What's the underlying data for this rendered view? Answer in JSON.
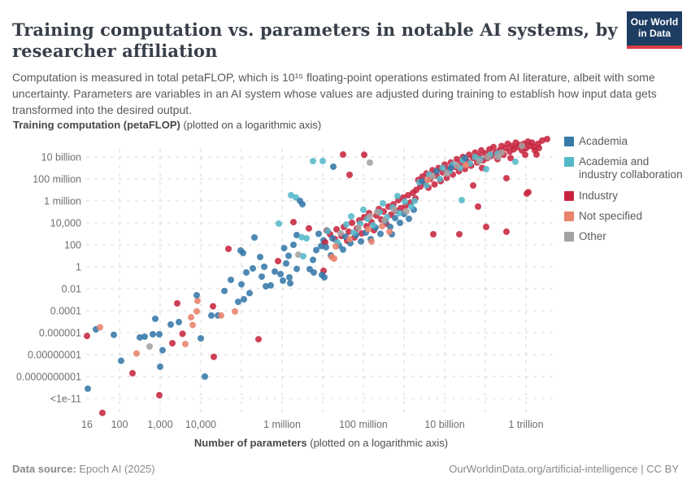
{
  "header": {
    "title": "Training computation vs. parameters in notable AI systems, by researcher affiliation",
    "subtitle": "Computation is measured in total petaFLOP, which is 10¹⁵ floating-point operations estimated from AI literature, albeit with some uncertainty. Parameters are variables in an AI system whose values are adjusted during training to establish how input data gets transformed into the desired output.",
    "logo": {
      "line1": "Our World",
      "line2": "in Data",
      "bg_color": "#1d3d63",
      "accent_color": "#dc3c43"
    }
  },
  "footer": {
    "datasource_label": "Data source:",
    "datasource_value": " Epoch AI (2025)",
    "right_text": "OurWorldinData.org/artificial-intelligence | CC BY"
  },
  "chart_data": {
    "type": "scatter",
    "title": "Training computation vs. parameters in notable AI systems, by researcher affiliation",
    "x_axis": {
      "label_bold": "Number of parameters",
      "label_rest": " (plotted on a logarithmic axis)",
      "scale": "log",
      "range_log10": [
        1.1,
        12.7
      ],
      "ticks": [
        {
          "log": 1.2,
          "label": "16"
        },
        {
          "log": 2,
          "label": "100"
        },
        {
          "log": 3,
          "label": "1,000"
        },
        {
          "log": 4,
          "label": "10,000"
        },
        {
          "log": 6,
          "label": "1 million"
        },
        {
          "log": 8,
          "label": "100 million"
        },
        {
          "log": 10,
          "label": "10 billion"
        },
        {
          "log": 12,
          "label": "1 trillion"
        }
      ],
      "gridline_logs": [
        2,
        3,
        4,
        5,
        6,
        7,
        8,
        9,
        10,
        11,
        12
      ]
    },
    "y_axis": {
      "label_bold": "Training computation (petaFLOP)",
      "label_rest": " (plotted on a logarithmic axis)",
      "scale": "log",
      "range_log10": [
        -13.5,
        11.8
      ],
      "ticks": [
        {
          "log": 10,
          "label": "10 billion"
        },
        {
          "log": 8,
          "label": "100 million"
        },
        {
          "log": 6,
          "label": "1 million"
        },
        {
          "log": 4,
          "label": "10,000"
        },
        {
          "log": 2,
          "label": "100"
        },
        {
          "log": 0,
          "label": "1"
        },
        {
          "log": -2,
          "label": "0.01"
        },
        {
          "log": -4,
          "label": "0.0001"
        },
        {
          "log": -6,
          "label": "0.000001"
        },
        {
          "log": -8,
          "label": "0.00000001"
        },
        {
          "log": -10,
          "label": "0.0000000001"
        },
        {
          "log": -12,
          "label": "<1e-11"
        }
      ]
    },
    "legend_position": "right",
    "grid": "dashed",
    "categories": [
      {
        "name": "Academia",
        "color": "#3579A9"
      },
      {
        "name": "Academia and industry collaboration",
        "color": "#55B8C9"
      },
      {
        "name": "Industry",
        "color": "#C7253F"
      },
      {
        "name": "Not specified",
        "color": "#E8836C"
      },
      {
        "name": "Other",
        "color": "#A5A2A2"
      }
    ],
    "points_format": "[log10(parameters), log10(petaFLOP), category_index]",
    "points_log10": [
      [
        1.2,
        -6.3,
        2
      ],
      [
        1.42,
        -5.7,
        0
      ],
      [
        1.52,
        -5.52,
        3
      ],
      [
        1.22,
        -11.1,
        0
      ],
      [
        1.58,
        -13.3,
        2
      ],
      [
        2.04,
        -8.56,
        0
      ],
      [
        2.32,
        -9.7,
        2
      ],
      [
        2.5,
        -6.44,
        0
      ],
      [
        2.62,
        -6.37,
        0
      ],
      [
        2.82,
        -6.15,
        0
      ],
      [
        2.98,
        -6.15,
        0
      ],
      [
        2.74,
        -7.26,
        4
      ],
      [
        2.88,
        -4.74,
        0
      ],
      [
        3.0,
        -9.1,
        0
      ],
      [
        2.98,
        -11.7,
        2
      ],
      [
        3.26,
        -5.26,
        0
      ],
      [
        3.42,
        -3.33,
        2
      ],
      [
        3.46,
        -5.04,
        0
      ],
      [
        3.3,
        -6.96,
        2
      ],
      [
        3.62,
        -7.04,
        3
      ],
      [
        3.76,
        -4.6,
        3
      ],
      [
        3.9,
        -4.07,
        3
      ],
      [
        4.0,
        -6.52,
        0
      ],
      [
        4.32,
        -8.2,
        2
      ],
      [
        4.1,
        -10.0,
        0
      ],
      [
        1.86,
        -6.2,
        0
      ],
      [
        2.42,
        -7.9,
        3
      ],
      [
        3.06,
        -7.6,
        0
      ],
      [
        3.55,
        -6.1,
        2
      ],
      [
        3.8,
        -5.3,
        3
      ],
      [
        4.26,
        -4.44,
        0
      ],
      [
        4.42,
        -4.44,
        0
      ],
      [
        4.5,
        -4.44,
        3
      ],
      [
        4.84,
        -4.07,
        3
      ],
      [
        3.92,
        -3.1,
        3
      ],
      [
        4.92,
        -3.19,
        0
      ],
      [
        5.06,
        -2.96,
        0
      ],
      [
        3.9,
        -2.59,
        0
      ],
      [
        4.74,
        -1.19,
        0
      ],
      [
        5.28,
        -0.15,
        0
      ],
      [
        4.68,
        1.63,
        2
      ],
      [
        5.6,
        -1.78,
        0
      ],
      [
        5.72,
        -1.7,
        0
      ],
      [
        6.18,
        -0.96,
        0
      ],
      [
        5.42,
        -6.6,
        2
      ],
      [
        4.58,
        -2.2,
        0
      ],
      [
        5.0,
        -1.6,
        0
      ],
      [
        5.2,
        -2.4,
        0
      ],
      [
        5.5,
        -0.9,
        0
      ],
      [
        4.3,
        -3.6,
        2
      ],
      [
        5.32,
        2.67,
        0
      ],
      [
        5.12,
        -0.52,
        0
      ],
      [
        4.98,
        1.48,
        0
      ],
      [
        5.04,
        1.26,
        0
      ],
      [
        5.46,
        0.89,
        0
      ],
      [
        5.56,
        0.0,
        0
      ],
      [
        5.82,
        -0.44,
        0
      ],
      [
        5.96,
        -0.67,
        0
      ],
      [
        6.02,
        -1.26,
        0
      ],
      [
        5.9,
        0.52,
        2
      ],
      [
        6.1,
        0.3,
        0
      ],
      [
        6.16,
        1.0,
        0
      ],
      [
        6.22,
        6.52,
        1
      ],
      [
        6.34,
        6.3,
        1
      ],
      [
        6.44,
        6.0,
        0
      ],
      [
        6.5,
        5.7,
        0
      ],
      [
        5.92,
        3.93,
        1
      ],
      [
        6.36,
        2.89,
        0
      ],
      [
        6.48,
        2.7,
        1
      ],
      [
        6.6,
        2.59,
        1
      ],
      [
        6.4,
        1.1,
        4
      ],
      [
        6.52,
        0.96,
        1
      ],
      [
        6.76,
        0.63,
        0
      ],
      [
        6.84,
        1.52,
        0
      ],
      [
        6.96,
        1.89,
        0
      ],
      [
        7.02,
        2.41,
        0
      ],
      [
        7.2,
        1.04,
        0
      ],
      [
        7.02,
        -0.37,
        2
      ],
      [
        6.68,
        -0.22,
        0
      ],
      [
        6.78,
        -0.52,
        0
      ],
      [
        6.98,
        -0.74,
        0
      ],
      [
        7.04,
        -0.96,
        0
      ],
      [
        6.36,
        -0.19,
        0
      ],
      [
        7.28,
        0.74,
        3
      ],
      [
        7.22,
        0.89,
        3
      ],
      [
        6.28,
        2.0,
        0
      ],
      [
        6.66,
        3.5,
        2
      ],
      [
        6.9,
        3.0,
        0
      ],
      [
        7.1,
        3.3,
        2
      ],
      [
        6.2,
        -1.5,
        0
      ],
      [
        6.28,
        4.07,
        2
      ],
      [
        6.05,
        1.7,
        0
      ],
      [
        6.76,
        9.63,
        1
      ],
      [
        7.0,
        9.63,
        1
      ],
      [
        7.26,
        9.11,
        0
      ],
      [
        7.5,
        10.22,
        2
      ],
      [
        8.02,
        10.2,
        2
      ],
      [
        8.16,
        9.48,
        4
      ],
      [
        7.66,
        8.37,
        2
      ],
      [
        7.06,
        2.22,
        2
      ],
      [
        7.18,
        2.96,
        2
      ],
      [
        7.3,
        2.52,
        2
      ],
      [
        7.34,
        3.41,
        2
      ],
      [
        7.46,
        2.81,
        2
      ],
      [
        7.52,
        3.63,
        2
      ],
      [
        7.6,
        2.37,
        2
      ],
      [
        7.64,
        3.19,
        2
      ],
      [
        7.72,
        4.0,
        2
      ],
      [
        7.78,
        2.67,
        2
      ],
      [
        7.84,
        3.48,
        2
      ],
      [
        7.9,
        4.22,
        2
      ],
      [
        7.96,
        3.04,
        2
      ],
      [
        8.02,
        4.52,
        2
      ],
      [
        8.08,
        3.7,
        2
      ],
      [
        8.14,
        4.89,
        2
      ],
      [
        8.2,
        4.07,
        2
      ],
      [
        8.26,
        3.33,
        2
      ],
      [
        8.32,
        4.67,
        2
      ],
      [
        8.38,
        5.26,
        2
      ],
      [
        8.44,
        4.3,
        2
      ],
      [
        8.5,
        5.04,
        2
      ],
      [
        8.56,
        3.93,
        2
      ],
      [
        8.62,
        5.48,
        2
      ],
      [
        8.68,
        4.74,
        2
      ],
      [
        8.74,
        5.7,
        2
      ],
      [
        8.8,
        5.11,
        2
      ],
      [
        8.86,
        6.07,
        2
      ],
      [
        8.92,
        5.33,
        2
      ],
      [
        8.98,
        6.3,
        2
      ],
      [
        9.04,
        5.56,
        2
      ],
      [
        9.1,
        6.52,
        2
      ],
      [
        9.16,
        5.85,
        2
      ],
      [
        9.22,
        6.74,
        2
      ],
      [
        9.28,
        6.22,
        2
      ],
      [
        7.08,
        1.78,
        0
      ],
      [
        7.24,
        2.59,
        0
      ],
      [
        7.4,
        1.93,
        0
      ],
      [
        7.56,
        2.74,
        0
      ],
      [
        7.68,
        2.15,
        0
      ],
      [
        7.82,
        2.89,
        0
      ],
      [
        7.94,
        2.3,
        0
      ],
      [
        8.06,
        3.11,
        0
      ],
      [
        8.18,
        2.52,
        0
      ],
      [
        8.3,
        3.56,
        0
      ],
      [
        8.42,
        3.0,
        0
      ],
      [
        8.54,
        4.15,
        0
      ],
      [
        8.66,
        3.63,
        0
      ],
      [
        8.78,
        4.44,
        0
      ],
      [
        8.9,
        4.0,
        0
      ],
      [
        9.0,
        4.81,
        0
      ],
      [
        9.12,
        4.37,
        0
      ],
      [
        9.24,
        5.19,
        0
      ],
      [
        7.5,
        1.56,
        0
      ],
      [
        8.7,
        2.96,
        0
      ],
      [
        7.12,
        3.26,
        1
      ],
      [
        7.36,
        2.22,
        1
      ],
      [
        7.58,
        3.85,
        1
      ],
      [
        7.76,
        3.11,
        1
      ],
      [
        7.92,
        3.93,
        1
      ],
      [
        8.1,
        4.37,
        1
      ],
      [
        8.24,
        3.78,
        1
      ],
      [
        8.4,
        4.96,
        1
      ],
      [
        8.58,
        4.52,
        1
      ],
      [
        8.72,
        5.41,
        1
      ],
      [
        8.88,
        4.89,
        1
      ],
      [
        9.02,
        5.93,
        1
      ],
      [
        9.18,
        5.48,
        1
      ],
      [
        7.7,
        4.59,
        1
      ],
      [
        8.0,
        5.19,
        1
      ],
      [
        8.48,
        5.78,
        1
      ],
      [
        8.84,
        6.44,
        1
      ],
      [
        9.26,
        6.0,
        1
      ],
      [
        7.44,
        3.07,
        4
      ],
      [
        7.88,
        3.56,
        4
      ],
      [
        8.16,
        4.59,
        4
      ],
      [
        8.52,
        4.22,
        4
      ],
      [
        8.76,
        5.19,
        4
      ],
      [
        9.06,
        5.04,
        4
      ],
      [
        8.34,
        5.0,
        4
      ],
      [
        7.32,
        1.85,
        3
      ],
      [
        7.66,
        2.52,
        3
      ],
      [
        8.12,
        3.41,
        3
      ],
      [
        8.46,
        3.7,
        3
      ],
      [
        8.2,
        2.3,
        3
      ],
      [
        8.64,
        3.19,
        3
      ],
      [
        9.3,
        7.0,
        2
      ],
      [
        9.35,
        7.9,
        2
      ],
      [
        9.4,
        7.3,
        2
      ],
      [
        9.45,
        8.2,
        2
      ],
      [
        9.5,
        7.6,
        2
      ],
      [
        9.55,
        8.5,
        2
      ],
      [
        9.6,
        7.2,
        2
      ],
      [
        9.65,
        8.0,
        2
      ],
      [
        9.7,
        8.8,
        2
      ],
      [
        9.75,
        7.5,
        2
      ],
      [
        9.8,
        8.3,
        2
      ],
      [
        9.85,
        9.0,
        2
      ],
      [
        9.9,
        7.8,
        2
      ],
      [
        9.95,
        8.6,
        2
      ],
      [
        10.0,
        9.3,
        2
      ],
      [
        10.05,
        8.1,
        2
      ],
      [
        10.1,
        8.9,
        2
      ],
      [
        10.15,
        9.5,
        2
      ],
      [
        10.2,
        8.4,
        2
      ],
      [
        10.25,
        9.1,
        2
      ],
      [
        10.3,
        9.8,
        2
      ],
      [
        10.35,
        8.7,
        2
      ],
      [
        10.4,
        9.4,
        2
      ],
      [
        10.45,
        10.0,
        2
      ],
      [
        10.5,
        8.9,
        2
      ],
      [
        10.55,
        9.6,
        2
      ],
      [
        10.6,
        10.2,
        2
      ],
      [
        10.65,
        9.2,
        2
      ],
      [
        10.7,
        9.9,
        2
      ],
      [
        10.75,
        10.4,
        2
      ],
      [
        10.8,
        9.5,
        2
      ],
      [
        10.85,
        10.1,
        2
      ],
      [
        10.9,
        10.6,
        2
      ],
      [
        10.95,
        9.7,
        2
      ],
      [
        11.0,
        10.3,
        2
      ],
      [
        11.05,
        9.9,
        2
      ],
      [
        11.1,
        10.7,
        2
      ],
      [
        11.15,
        10.1,
        2
      ],
      [
        11.2,
        10.9,
        2
      ],
      [
        11.25,
        10.4,
        2
      ],
      [
        11.3,
        9.8,
        2
      ],
      [
        11.35,
        10.6,
        2
      ],
      [
        11.4,
        11.0,
        2
      ],
      [
        11.45,
        10.2,
        2
      ],
      [
        11.5,
        10.8,
        2
      ],
      [
        11.55,
        11.2,
        2
      ],
      [
        11.6,
        10.5,
        2
      ],
      [
        11.65,
        11.0,
        2
      ],
      [
        11.7,
        10.7,
        2
      ],
      [
        11.75,
        11.3,
        2
      ],
      [
        11.8,
        10.9,
        2
      ],
      [
        11.85,
        11.1,
        2
      ],
      [
        11.9,
        10.6,
        2
      ],
      [
        11.95,
        11.2,
        2
      ],
      [
        12.0,
        10.8,
        2
      ],
      [
        12.05,
        11.4,
        2
      ],
      [
        12.1,
        11.0,
        2
      ],
      [
        12.15,
        11.3,
        2
      ],
      [
        12.2,
        10.9,
        2
      ],
      [
        12.3,
        11.2,
        2
      ],
      [
        12.4,
        11.5,
        2
      ],
      [
        12.52,
        11.63,
        2
      ],
      [
        12.22,
        10.6,
        2
      ],
      [
        11.98,
        10.2,
        2
      ],
      [
        11.62,
        9.9,
        2
      ],
      [
        10.92,
        9.0,
        2
      ],
      [
        11.52,
        8.07,
        2
      ],
      [
        10.7,
        7.4,
        2
      ],
      [
        12.06,
        6.8,
        2
      ],
      [
        12.26,
        10.22,
        2
      ],
      [
        12.32,
        10.81,
        2
      ],
      [
        12.02,
        6.67,
        2
      ],
      [
        9.38,
        7.7,
        1
      ],
      [
        9.62,
        8.4,
        1
      ],
      [
        9.88,
        8.0,
        1
      ],
      [
        10.12,
        8.7,
        1
      ],
      [
        10.38,
        9.0,
        1
      ],
      [
        10.62,
        9.4,
        1
      ],
      [
        10.88,
        9.8,
        1
      ],
      [
        11.12,
        10.2,
        1
      ],
      [
        9.95,
        9.0,
        1
      ],
      [
        10.45,
        9.7,
        1
      ],
      [
        10.75,
        10.0,
        1
      ],
      [
        11.3,
        10.3,
        1
      ],
      [
        9.55,
        7.4,
        1
      ],
      [
        10.2,
        9.3,
        1
      ],
      [
        10.42,
        6.07,
        1
      ],
      [
        11.02,
        8.89,
        1
      ],
      [
        11.74,
        9.56,
        1
      ],
      [
        9.7,
        8.2,
        4
      ],
      [
        10.3,
        9.2,
        4
      ],
      [
        10.85,
        9.6,
        4
      ],
      [
        11.4,
        10.4,
        4
      ],
      [
        11.9,
        11.0,
        4
      ],
      [
        10.05,
        8.5,
        4
      ],
      [
        11.05,
        10.0,
        4
      ],
      [
        11.32,
        10.0,
        4
      ],
      [
        9.45,
        7.8,
        0
      ],
      [
        9.8,
        8.7,
        0
      ],
      [
        10.5,
        9.9,
        0
      ],
      [
        10.15,
        9.0,
        0
      ],
      [
        10.52,
        9.26,
        3
      ],
      [
        9.58,
        7.9,
        3
      ],
      [
        9.72,
        2.96,
        2
      ],
      [
        10.36,
        2.96,
        2
      ],
      [
        11.02,
        3.63,
        2
      ],
      [
        11.52,
        3.19,
        2
      ],
      [
        10.82,
        5.48,
        2
      ]
    ],
    "colors": {
      "grid": "#d9d9d9",
      "tick_label": "#6e6e6e"
    }
  }
}
